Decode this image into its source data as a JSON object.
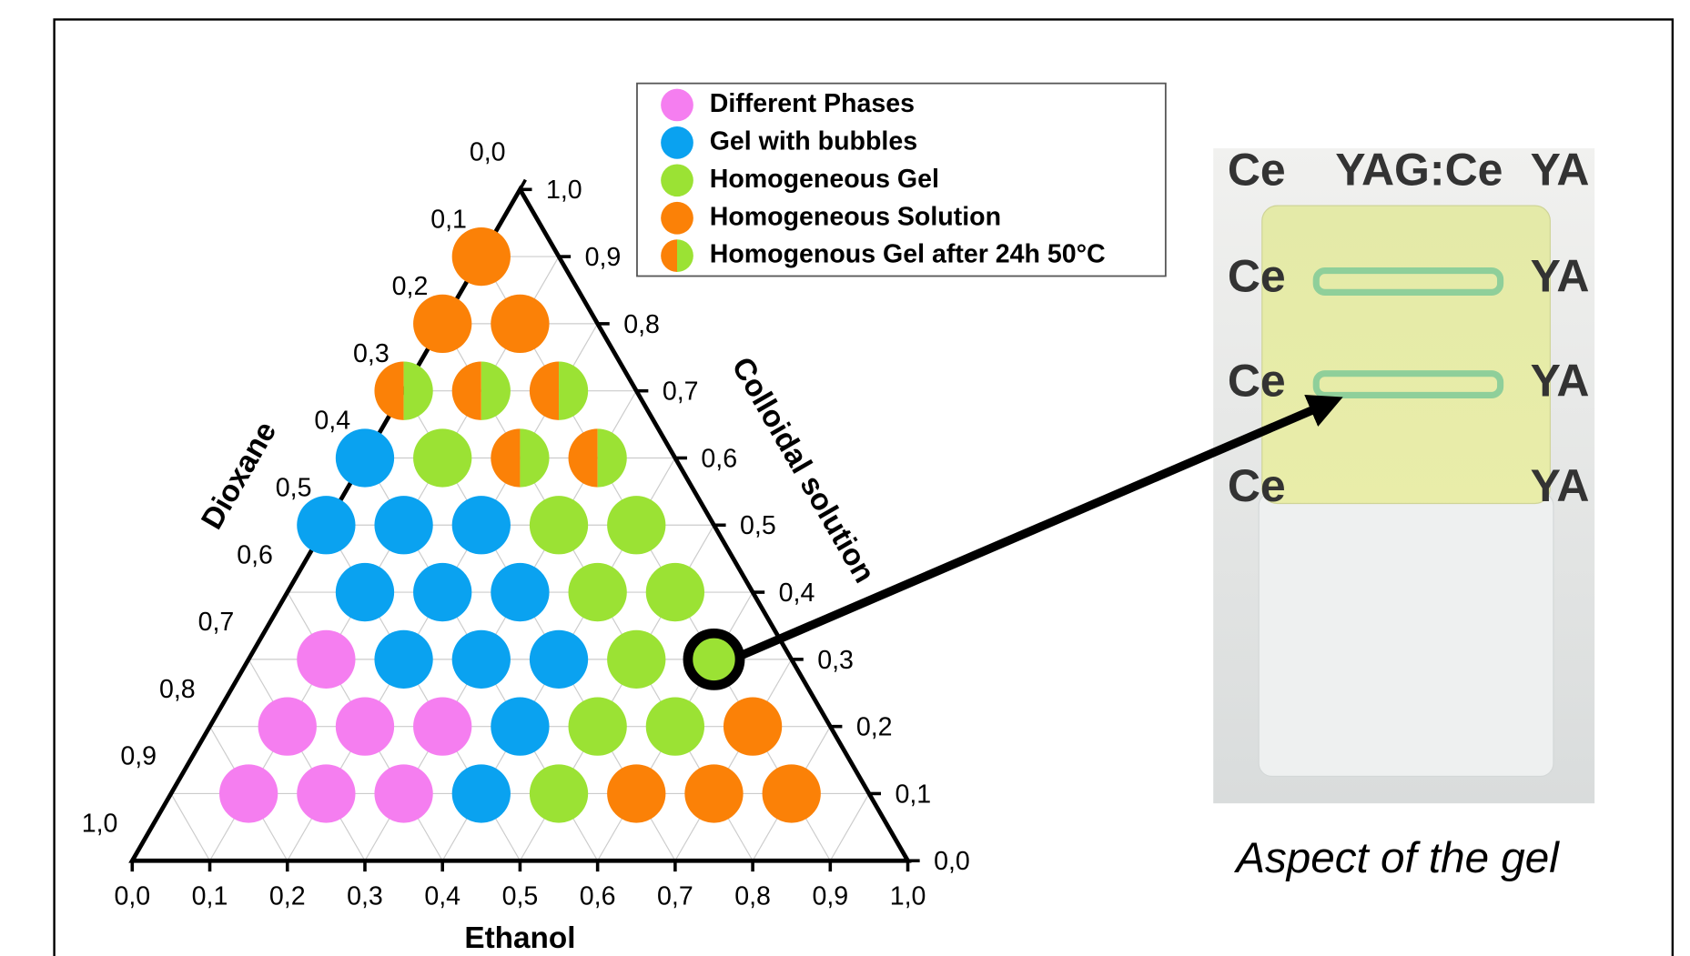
{
  "chart_data": {
    "type": "ternary",
    "axis_labels": {
      "bottom": "Ethanol",
      "right": "Colloidal solution",
      "left": "Dioxane"
    },
    "ethanol_ticks": [
      {
        "value": 0,
        "label": "0,0"
      },
      {
        "value": 0.1,
        "label": "0,1"
      },
      {
        "value": 0.2,
        "label": "0,2"
      },
      {
        "value": 0.3,
        "label": "0,3"
      },
      {
        "value": 0.4,
        "label": "0,4"
      },
      {
        "value": 0.5,
        "label": "0,5"
      },
      {
        "value": 0.6,
        "label": "0,6"
      },
      {
        "value": 0.7,
        "label": "0,7"
      },
      {
        "value": 0.8,
        "label": "0,8"
      },
      {
        "value": 0.9,
        "label": "0,9"
      },
      {
        "value": 1,
        "label": "1,0"
      }
    ],
    "colloidal_ticks": [
      {
        "value": 0,
        "label": "0,0"
      },
      {
        "value": 0.1,
        "label": "0,1"
      },
      {
        "value": 0.2,
        "label": "0,2"
      },
      {
        "value": 0.3,
        "label": "0,3"
      },
      {
        "value": 0.4,
        "label": "0,4"
      },
      {
        "value": 0.5,
        "label": "0,5"
      },
      {
        "value": 0.6,
        "label": "0,6"
      },
      {
        "value": 0.7,
        "label": "0,7"
      },
      {
        "value": 0.8,
        "label": "0,8"
      },
      {
        "value": 0.9,
        "label": "0,9"
      },
      {
        "value": 1,
        "label": "1,0"
      }
    ],
    "dioxane_ticks": [
      {
        "value": 0,
        "label": "0,0"
      },
      {
        "value": 0.1,
        "label": "0,1"
      },
      {
        "value": 0.2,
        "label": "0,2"
      },
      {
        "value": 0.3,
        "label": "0,3"
      },
      {
        "value": 0.4,
        "label": "0,4"
      },
      {
        "value": 0.5,
        "label": "0,5"
      },
      {
        "value": 0.6,
        "label": "0,6"
      },
      {
        "value": 0.7,
        "label": "0,7"
      },
      {
        "value": 0.8,
        "label": "0,8"
      },
      {
        "value": 0.9,
        "label": "0,9"
      },
      {
        "value": 1,
        "label": "1,0"
      }
    ],
    "grid": true,
    "series": [
      {
        "name": "Different Phases",
        "color": "#f57ef0",
        "ethanol": [
          0.1,
          0.2,
          0.3,
          0.1,
          0.2,
          0.3,
          0.1
        ],
        "colloidal": [
          0.1,
          0.1,
          0.1,
          0.2,
          0.2,
          0.2,
          0.3
        ]
      },
      {
        "name": " Gel with bubbles",
        "color": "#0aa2f0",
        "ethanol": [
          0.4,
          0.4,
          0.2,
          0.3,
          0.4,
          0.1,
          0.2,
          0.3,
          0,
          0.1,
          0.2,
          0
        ],
        "colloidal": [
          0.1,
          0.2,
          0.3,
          0.3,
          0.3,
          0.4,
          0.4,
          0.4,
          0.5,
          0.5,
          0.5,
          0.6
        ]
      },
      {
        "name": "Homogeneous Gel",
        "color": "#9be234",
        "ethanol": [
          0.5,
          0.5,
          0.6,
          0.5,
          0.6,
          0.4,
          0.5,
          0.3,
          0.4,
          0.1
        ],
        "colloidal": [
          0.1,
          0.2,
          0.2,
          0.3,
          0.3,
          0.4,
          0.4,
          0.5,
          0.5,
          0.6
        ]
      },
      {
        "name": "Homogeneous Solution",
        "color": "#fb8107",
        "ethanol": [
          0.6,
          0.7,
          0.8,
          0.7,
          0,
          0.1,
          0
        ],
        "colloidal": [
          0.1,
          0.1,
          0.1,
          0.2,
          0.8,
          0.8,
          0.9
        ]
      },
      {
        "name": "Homogenous Gel after 24h 50°C",
        "color": [
          "#fb8107",
          "#9be234"
        ],
        "ethanol": [
          0.2,
          0.3,
          0,
          0.1,
          0.2
        ],
        "colloidal": [
          0.6,
          0.6,
          0.7,
          0.7,
          0.7
        ]
      }
    ],
    "highlight": {
      "series": 2,
      "point": 4
    },
    "photo": {
      "caption": "Aspect of the gel",
      "labels": [
        "Ce",
        "YAG:Ce",
        "YA"
      ]
    }
  }
}
